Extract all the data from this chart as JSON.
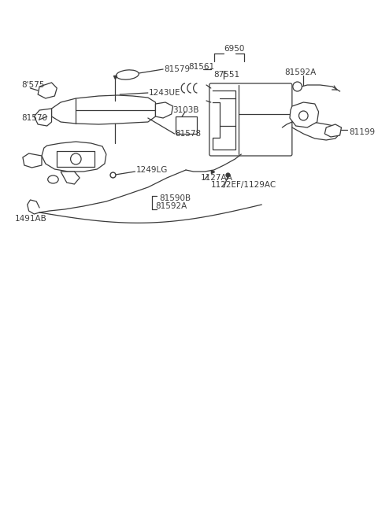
{
  "bg_color": "#ffffff",
  "line_color": "#3a3a3a",
  "text_color": "#3a3a3a",
  "fig_width": 4.8,
  "fig_height": 6.57,
  "dpi": 100,
  "xlim": [
    0,
    480
  ],
  "ylim": [
    0,
    657
  ]
}
